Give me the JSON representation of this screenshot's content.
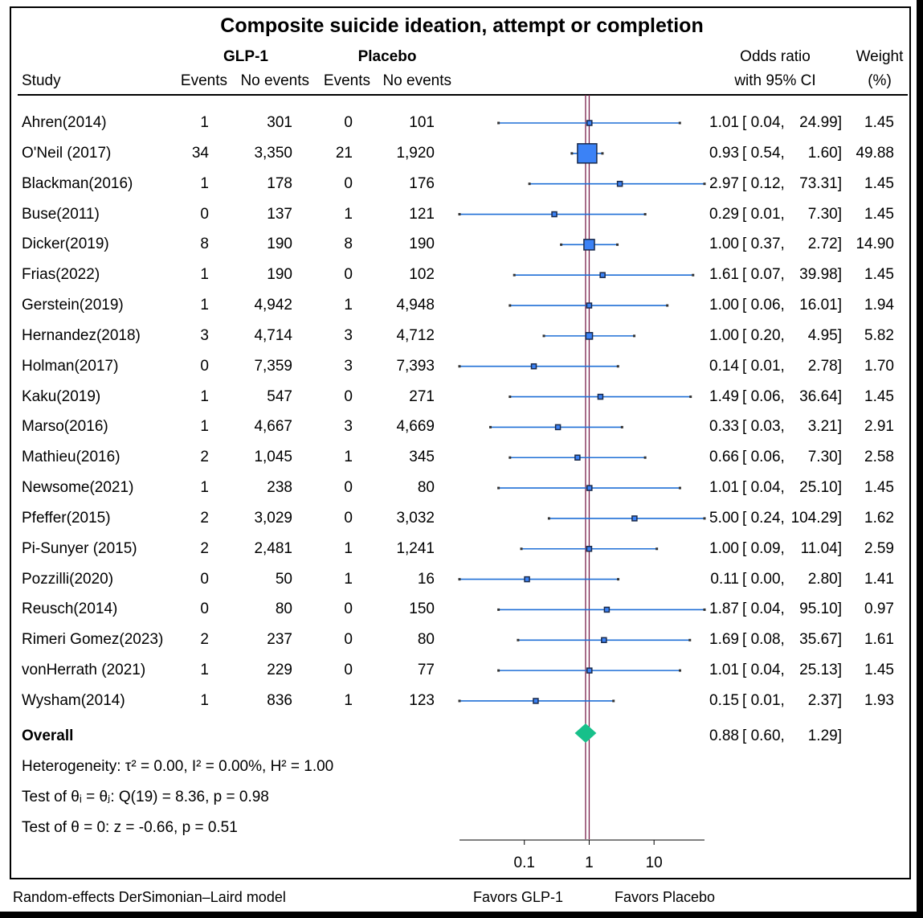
{
  "chart_data": {
    "type": "forest",
    "title": "Composite suicide ideation, attempt or completion",
    "header": {
      "group1": "GLP-1",
      "group2": "Placebo",
      "study": "Study",
      "events": "Events",
      "no_events": "No events",
      "or_line1": "Odds ratio",
      "or_line2": "with 95% CI",
      "weight_line1": "Weight",
      "weight_line2": "(%)"
    },
    "x_scale": "log",
    "xlim": [
      0.01,
      60
    ],
    "reference_line": 1,
    "x_ticks": [
      "0.1",
      "1",
      "10"
    ],
    "studies": [
      {
        "name": "Ahren(2014)",
        "e1": "1",
        "n1": "301",
        "e2": "0",
        "n2": "101",
        "or": 1.01,
        "lo": 0.04,
        "hi": 24.99,
        "or_s": "1.01",
        "lo_s": "0.04,",
        "hi_s": "24.99]",
        "weight": "1.45",
        "w": 1.45
      },
      {
        "name": "O'Neil (2017)",
        "e1": "34",
        "n1": "3,350",
        "e2": "21",
        "n2": "1,920",
        "or": 0.93,
        "lo": 0.54,
        "hi": 1.6,
        "or_s": "0.93",
        "lo_s": "0.54,",
        "hi_s": "1.60]",
        "weight": "49.88",
        "w": 49.88
      },
      {
        "name": "Blackman(2016)",
        "e1": "1",
        "n1": "178",
        "e2": "0",
        "n2": "176",
        "or": 2.97,
        "lo": 0.12,
        "hi": 73.31,
        "or_s": "2.97",
        "lo_s": "0.12,",
        "hi_s": "73.31]",
        "weight": "1.45",
        "w": 1.45
      },
      {
        "name": "Buse(2011)",
        "e1": "0",
        "n1": "137",
        "e2": "1",
        "n2": "121",
        "or": 0.29,
        "lo": 0.01,
        "hi": 7.3,
        "or_s": "0.29",
        "lo_s": "0.01,",
        "hi_s": "7.30]",
        "weight": "1.45",
        "w": 1.45
      },
      {
        "name": "Dicker(2019)",
        "e1": "8",
        "n1": "190",
        "e2": "8",
        "n2": "190",
        "or": 1.0,
        "lo": 0.37,
        "hi": 2.72,
        "or_s": "1.00",
        "lo_s": "0.37,",
        "hi_s": "2.72]",
        "weight": "14.90",
        "w": 14.9
      },
      {
        "name": "Frias(2022)",
        "e1": "1",
        "n1": "190",
        "e2": "0",
        "n2": "102",
        "or": 1.61,
        "lo": 0.07,
        "hi": 39.98,
        "or_s": "1.61",
        "lo_s": "0.07,",
        "hi_s": "39.98]",
        "weight": "1.45",
        "w": 1.45
      },
      {
        "name": "Gerstein(2019)",
        "e1": "1",
        "n1": "4,942",
        "e2": "1",
        "n2": "4,948",
        "or": 1.0,
        "lo": 0.06,
        "hi": 16.01,
        "or_s": "1.00",
        "lo_s": "0.06,",
        "hi_s": "16.01]",
        "weight": "1.94",
        "w": 1.94
      },
      {
        "name": "Hernandez(2018)",
        "e1": "3",
        "n1": "4,714",
        "e2": "3",
        "n2": "4,712",
        "or": 1.0,
        "lo": 0.2,
        "hi": 4.95,
        "or_s": "1.00",
        "lo_s": "0.20,",
        "hi_s": "4.95]",
        "weight": "5.82",
        "w": 5.82
      },
      {
        "name": "Holman(2017)",
        "e1": "0",
        "n1": "7,359",
        "e2": "3",
        "n2": "7,393",
        "or": 0.14,
        "lo": 0.01,
        "hi": 2.78,
        "or_s": "0.14",
        "lo_s": "0.01,",
        "hi_s": "2.78]",
        "weight": "1.70",
        "w": 1.7
      },
      {
        "name": "Kaku(2019)",
        "e1": "1",
        "n1": "547",
        "e2": "0",
        "n2": "271",
        "or": 1.49,
        "lo": 0.06,
        "hi": 36.64,
        "or_s": "1.49",
        "lo_s": "0.06,",
        "hi_s": "36.64]",
        "weight": "1.45",
        "w": 1.45
      },
      {
        "name": "Marso(2016)",
        "e1": "1",
        "n1": "4,667",
        "e2": "3",
        "n2": "4,669",
        "or": 0.33,
        "lo": 0.03,
        "hi": 3.21,
        "or_s": "0.33",
        "lo_s": "0.03,",
        "hi_s": "3.21]",
        "weight": "2.91",
        "w": 2.91
      },
      {
        "name": "Mathieu(2016)",
        "e1": "2",
        "n1": "1,045",
        "e2": "1",
        "n2": "345",
        "or": 0.66,
        "lo": 0.06,
        "hi": 7.3,
        "or_s": "0.66",
        "lo_s": "0.06,",
        "hi_s": "7.30]",
        "weight": "2.58",
        "w": 2.58
      },
      {
        "name": "Newsome(2021)",
        "e1": "1",
        "n1": "238",
        "e2": "0",
        "n2": "80",
        "or": 1.01,
        "lo": 0.04,
        "hi": 25.1,
        "or_s": "1.01",
        "lo_s": "0.04,",
        "hi_s": "25.10]",
        "weight": "1.45",
        "w": 1.45
      },
      {
        "name": "Pfeffer(2015)",
        "e1": "2",
        "n1": "3,029",
        "e2": "0",
        "n2": "3,032",
        "or": 5.0,
        "lo": 0.24,
        "hi": 104.29,
        "or_s": "5.00",
        "lo_s": "0.24,",
        "hi_s": "104.29]",
        "weight": "1.62",
        "w": 1.62
      },
      {
        "name": "Pi-Sunyer (2015)",
        "e1": "2",
        "n1": "2,481",
        "e2": "1",
        "n2": "1,241",
        "or": 1.0,
        "lo": 0.09,
        "hi": 11.04,
        "or_s": "1.00",
        "lo_s": "0.09,",
        "hi_s": "11.04]",
        "weight": "2.59",
        "w": 2.59
      },
      {
        "name": "Pozzilli(2020)",
        "e1": "0",
        "n1": "50",
        "e2": "1",
        "n2": "16",
        "or": 0.11,
        "lo": 0.0,
        "hi": 2.8,
        "or_s": "0.11",
        "lo_s": "0.00,",
        "hi_s": "2.80]",
        "weight": "1.41",
        "w": 1.41
      },
      {
        "name": "Reusch(2014)",
        "e1": "0",
        "n1": "80",
        "e2": "0",
        "n2": "150",
        "or": 1.87,
        "lo": 0.04,
        "hi": 95.1,
        "or_s": "1.87",
        "lo_s": "0.04,",
        "hi_s": "95.10]",
        "weight": "0.97",
        "w": 0.97
      },
      {
        "name": "Rimeri Gomez(2023)",
        "e1": "2",
        "n1": "237",
        "e2": "0",
        "n2": "80",
        "or": 1.69,
        "lo": 0.08,
        "hi": 35.67,
        "or_s": "1.69",
        "lo_s": "0.08,",
        "hi_s": "35.67]",
        "weight": "1.61",
        "w": 1.61
      },
      {
        "name": "vonHerrath (2021)",
        "e1": "1",
        "n1": "229",
        "e2": "0",
        "n2": "77",
        "or": 1.01,
        "lo": 0.04,
        "hi": 25.13,
        "or_s": "1.01",
        "lo_s": "0.04,",
        "hi_s": "25.13]",
        "weight": "1.45",
        "w": 1.45
      },
      {
        "name": "Wysham(2014)",
        "e1": "1",
        "n1": "836",
        "e2": "1",
        "n2": "123",
        "or": 0.15,
        "lo": 0.01,
        "hi": 2.37,
        "or_s": "0.15",
        "lo_s": "0.01,",
        "hi_s": "2.37]",
        "weight": "1.93",
        "w": 1.93
      }
    ],
    "overall": {
      "label": "Overall",
      "or": 0.88,
      "lo": 0.6,
      "hi": 1.29,
      "or_s": "0.88",
      "lo_s": "0.60,",
      "hi_s": "1.29]"
    },
    "heterogeneity": "Heterogeneity: τ² = 0.00, I² = 0.00%, H² = 1.00",
    "test_theta_i": "Test of θᵢ = θⱼ: Q(19) = 8.36, p = 0.98",
    "test_theta": "Test of θ = 0: z = -0.66, p = 0.51",
    "footer_model": "Random-effects DerSimonian–Laird model",
    "favors_left": "Favors GLP-1",
    "favors_right": "Favors Placebo",
    "colors": {
      "ci_line": "#1f6fd6",
      "marker": "#3b82f6",
      "diamond": "#17c08a",
      "ref_line": "#7a1f4a"
    }
  }
}
